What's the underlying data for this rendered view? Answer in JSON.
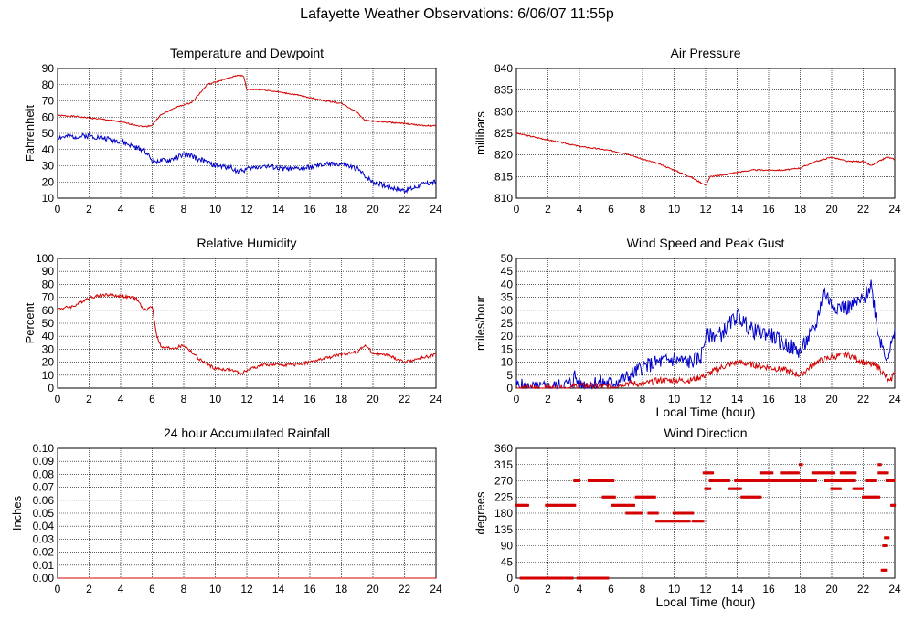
{
  "title": "Lafayette Weather Observations: 6/06/07 11:55p",
  "colors": {
    "red": "#d40000",
    "blue": "#0000c8",
    "grid": "#000000"
  },
  "chart_data": [
    {
      "id": "temp",
      "type": "line",
      "title": "Temperature and Dewpoint",
      "xlabel": "",
      "ylabel": "Fahrenheit",
      "xlim": [
        0,
        24
      ],
      "ylim": [
        10,
        90
      ],
      "xticks": [
        0,
        2,
        4,
        6,
        8,
        10,
        12,
        14,
        16,
        18,
        20,
        22,
        24
      ],
      "yticks": [
        10,
        20,
        30,
        40,
        50,
        60,
        70,
        80,
        90
      ],
      "grid": true,
      "series": [
        {
          "color": "#d40000",
          "noise": 0.4,
          "seed": 1,
          "points": [
            [
              0,
              61
            ],
            [
              1,
              60.5
            ],
            [
              2,
              59.5
            ],
            [
              3,
              58.5
            ],
            [
              4,
              57
            ],
            [
              5,
              55
            ],
            [
              5.5,
              54
            ],
            [
              6,
              55
            ],
            [
              6.5,
              61
            ],
            [
              7.5,
              66
            ],
            [
              8.5,
              69
            ],
            [
              9.5,
              80
            ],
            [
              10.5,
              83
            ],
            [
              11.5,
              86
            ],
            [
              11.8,
              85
            ],
            [
              12,
              77
            ],
            [
              13,
              77
            ],
            [
              14,
              75.5
            ],
            [
              15,
              74
            ],
            [
              16,
              72
            ],
            [
              17,
              70
            ],
            [
              18,
              68.5
            ],
            [
              19,
              63
            ],
            [
              19.5,
              58
            ],
            [
              20,
              57.5
            ],
            [
              22,
              56
            ],
            [
              23,
              55
            ],
            [
              24,
              54.5
            ]
          ]
        },
        {
          "color": "#0000c8",
          "noise": 1.6,
          "seed": 2,
          "points": [
            [
              0,
              47.5
            ],
            [
              1,
              48
            ],
            [
              2,
              48.5
            ],
            [
              3,
              47
            ],
            [
              4,
              45
            ],
            [
              5,
              41
            ],
            [
              5.5,
              40
            ],
            [
              6,
              33
            ],
            [
              7,
              33
            ],
            [
              8,
              37
            ],
            [
              8.5,
              36
            ],
            [
              9,
              34
            ],
            [
              10,
              30
            ],
            [
              11,
              29
            ],
            [
              11.5,
              26
            ],
            [
              12,
              28
            ],
            [
              13,
              30
            ],
            [
              14,
              28.5
            ],
            [
              15,
              28
            ],
            [
              16,
              29
            ],
            [
              17,
              31
            ],
            [
              18,
              31
            ],
            [
              19,
              28
            ],
            [
              20,
              20
            ],
            [
              21,
              17
            ],
            [
              22,
              15
            ],
            [
              22.5,
              16
            ],
            [
              23,
              18
            ],
            [
              24,
              20
            ]
          ]
        }
      ]
    },
    {
      "id": "pressure",
      "type": "line",
      "title": "Air Pressure",
      "xlabel": "",
      "ylabel": "millibars",
      "xlim": [
        0,
        24
      ],
      "ylim": [
        810,
        840
      ],
      "xticks": [
        0,
        2,
        4,
        6,
        8,
        10,
        12,
        14,
        16,
        18,
        20,
        22,
        24
      ],
      "yticks": [
        810,
        815,
        820,
        825,
        830,
        835,
        840
      ],
      "grid": true,
      "series": [
        {
          "color": "#d40000",
          "noise": 0.15,
          "seed": 3,
          "points": [
            [
              0,
              825
            ],
            [
              2,
              823.5
            ],
            [
              4,
              822
            ],
            [
              6,
              821
            ],
            [
              7,
              820.3
            ],
            [
              8,
              819
            ],
            [
              9,
              818
            ],
            [
              10,
              816.5
            ],
            [
              11,
              815
            ],
            [
              11.5,
              814
            ],
            [
              12,
              813
            ],
            [
              12.3,
              815
            ],
            [
              13,
              815.3
            ],
            [
              14,
              816
            ],
            [
              15,
              816.5
            ],
            [
              16,
              816.5
            ],
            [
              17,
              816.5
            ],
            [
              18,
              817
            ],
            [
              19,
              818.5
            ],
            [
              20,
              819.5
            ],
            [
              21,
              818.5
            ],
            [
              22,
              818.5
            ],
            [
              22.5,
              817.5
            ],
            [
              23,
              818.5
            ],
            [
              23.5,
              819.5
            ],
            [
              24,
              819
            ]
          ]
        }
      ]
    },
    {
      "id": "humidity",
      "type": "line",
      "title": "Relative Humidity",
      "xlabel": "",
      "ylabel": "Percent",
      "xlim": [
        0,
        24
      ],
      "ylim": [
        0,
        100
      ],
      "xticks": [
        0,
        2,
        4,
        6,
        8,
        10,
        12,
        14,
        16,
        18,
        20,
        22,
        24
      ],
      "yticks": [
        0,
        10,
        20,
        30,
        40,
        50,
        60,
        70,
        80,
        90,
        100
      ],
      "grid": true,
      "series": [
        {
          "color": "#d40000",
          "noise": 1.2,
          "seed": 4,
          "points": [
            [
              0,
              61
            ],
            [
              1,
              63
            ],
            [
              2,
              70
            ],
            [
              3,
              72
            ],
            [
              4,
              71
            ],
            [
              5,
              69
            ],
            [
              5.5,
              60
            ],
            [
              6,
              63
            ],
            [
              6.3,
              40
            ],
            [
              6.6,
              31
            ],
            [
              7.5,
              31
            ],
            [
              8,
              33
            ],
            [
              8.5,
              28
            ],
            [
              9,
              22
            ],
            [
              10,
              15
            ],
            [
              11,
              14
            ],
            [
              11.7,
              11
            ],
            [
              12,
              14
            ],
            [
              13,
              18
            ],
            [
              14,
              18
            ],
            [
              15,
              18
            ],
            [
              16,
              20
            ],
            [
              17,
              23
            ],
            [
              18,
              26
            ],
            [
              19,
              28
            ],
            [
              19.5,
              33
            ],
            [
              20,
              27
            ],
            [
              21,
              25
            ],
            [
              22,
              20
            ],
            [
              23,
              23
            ],
            [
              24,
              26
            ]
          ]
        }
      ]
    },
    {
      "id": "wind",
      "type": "line",
      "title": "Wind Speed and Peak Gust",
      "xlabel": "Local Time (hour)",
      "ylabel": "miles/hour",
      "xlim": [
        0,
        24
      ],
      "ylim": [
        0,
        50
      ],
      "xticks": [
        0,
        2,
        4,
        6,
        8,
        10,
        12,
        14,
        16,
        18,
        20,
        22,
        24
      ],
      "yticks": [
        0,
        5,
        10,
        15,
        20,
        25,
        30,
        35,
        40,
        45,
        50
      ],
      "grid": true,
      "series": [
        {
          "color": "#0000c8",
          "noise": 3.0,
          "seed": 5,
          "points": [
            [
              0,
              1
            ],
            [
              1,
              0
            ],
            [
              2,
              0
            ],
            [
              3,
              1
            ],
            [
              3.5,
              2
            ],
            [
              3.7,
              5
            ],
            [
              4,
              1
            ],
            [
              5,
              2
            ],
            [
              6,
              2
            ],
            [
              7,
              4
            ],
            [
              8,
              8
            ],
            [
              9,
              10
            ],
            [
              10,
              11
            ],
            [
              11,
              10
            ],
            [
              11.7,
              12
            ],
            [
              12,
              20
            ],
            [
              13,
              21
            ],
            [
              14,
              28
            ],
            [
              15,
              22
            ],
            [
              16,
              21
            ],
            [
              17,
              17
            ],
            [
              18,
              14
            ],
            [
              19,
              24
            ],
            [
              19.5,
              38
            ],
            [
              20,
              32
            ],
            [
              21,
              31
            ],
            [
              22,
              34
            ],
            [
              22.5,
              40
            ],
            [
              23,
              20
            ],
            [
              23.5,
              12
            ],
            [
              24,
              20
            ]
          ]
        },
        {
          "color": "#d40000",
          "noise": 1.2,
          "seed": 6,
          "points": [
            [
              0,
              0
            ],
            [
              3,
              0
            ],
            [
              4,
              1
            ],
            [
              6,
              0.5
            ],
            [
              7,
              2
            ],
            [
              8,
              1.5
            ],
            [
              9,
              3
            ],
            [
              10,
              3
            ],
            [
              11,
              3
            ],
            [
              12,
              5
            ],
            [
              13,
              8
            ],
            [
              14,
              10
            ],
            [
              15,
              9
            ],
            [
              16,
              8
            ],
            [
              17,
              7
            ],
            [
              18,
              5
            ],
            [
              19,
              10
            ],
            [
              20,
              12
            ],
            [
              21,
              13
            ],
            [
              22,
              10
            ],
            [
              23,
              8
            ],
            [
              23.7,
              2
            ],
            [
              24,
              7
            ]
          ]
        }
      ]
    },
    {
      "id": "rain",
      "type": "line",
      "title": "24 hour Accumulated Rainfall",
      "xlabel": "",
      "ylabel": "Inches",
      "xlim": [
        0,
        24
      ],
      "ylim": [
        0,
        0.1
      ],
      "xticks": [
        0,
        2,
        4,
        6,
        8,
        10,
        12,
        14,
        16,
        18,
        20,
        22,
        24
      ],
      "yticks": [
        "0.00",
        "0.01",
        "0.02",
        "0.03",
        "0.04",
        "0.05",
        "0.06",
        "0.07",
        "0.08",
        "0.09",
        "0.10"
      ],
      "grid": true,
      "series": [
        {
          "color": "#d40000",
          "noise": 0,
          "seed": 7,
          "points": [
            [
              0,
              0
            ],
            [
              24,
              0
            ]
          ]
        }
      ]
    },
    {
      "id": "direction",
      "type": "scatter",
      "title": "Wind Direction",
      "xlabel": "Local Time (hour)",
      "ylabel": "degrees",
      "xlim": [
        0,
        24
      ],
      "ylim": [
        0,
        360
      ],
      "xticks": [
        0,
        2,
        4,
        6,
        8,
        10,
        12,
        14,
        16,
        18,
        20,
        22,
        24
      ],
      "yticks": [
        0,
        45,
        90,
        135,
        180,
        225,
        270,
        315,
        360
      ],
      "grid": true,
      "series": [
        {
          "color": "#d40000",
          "segments": [
            [
              0.0,
              0.8,
              202
            ],
            [
              0.3,
              3.6,
              0
            ],
            [
              1.9,
              3.7,
              202
            ],
            [
              3.7,
              4.0,
              270
            ],
            [
              3.9,
              5.8,
              0
            ],
            [
              4.6,
              6.2,
              270
            ],
            [
              5.5,
              6.3,
              225
            ],
            [
              6.1,
              7.5,
              202
            ],
            [
              7.0,
              7.9,
              180
            ],
            [
              7.6,
              8.8,
              225
            ],
            [
              8.4,
              9.0,
              180
            ],
            [
              8.9,
              11.0,
              158
            ],
            [
              10.0,
              11.2,
              180
            ],
            [
              11.2,
              11.9,
              158
            ],
            [
              11.9,
              12.5,
              292
            ],
            [
              12.0,
              12.3,
              248
            ],
            [
              12.3,
              13.5,
              270
            ],
            [
              13.5,
              14.3,
              248
            ],
            [
              13.9,
              15.0,
              270
            ],
            [
              14.3,
              15.5,
              225
            ],
            [
              15.1,
              17.9,
              270
            ],
            [
              15.5,
              16.3,
              292
            ],
            [
              16.8,
              17.9,
              292
            ],
            [
              17.9,
              19.0,
              270
            ],
            [
              18.0,
              18.1,
              315
            ],
            [
              18.8,
              20.2,
              292
            ],
            [
              19.6,
              21.4,
              270
            ],
            [
              20.0,
              20.6,
              248
            ],
            [
              20.6,
              21.5,
              292
            ],
            [
              21.4,
              22.0,
              248
            ],
            [
              22.0,
              23.0,
              225
            ],
            [
              22.2,
              22.8,
              270
            ],
            [
              23.0,
              23.1,
              315
            ],
            [
              23.0,
              23.6,
              292
            ],
            [
              23.2,
              23.5,
              22
            ],
            [
              23.3,
              23.5,
              90
            ],
            [
              23.4,
              23.6,
              112
            ],
            [
              23.5,
              24.0,
              270
            ],
            [
              23.8,
              24.0,
              202
            ]
          ]
        }
      ]
    }
  ]
}
